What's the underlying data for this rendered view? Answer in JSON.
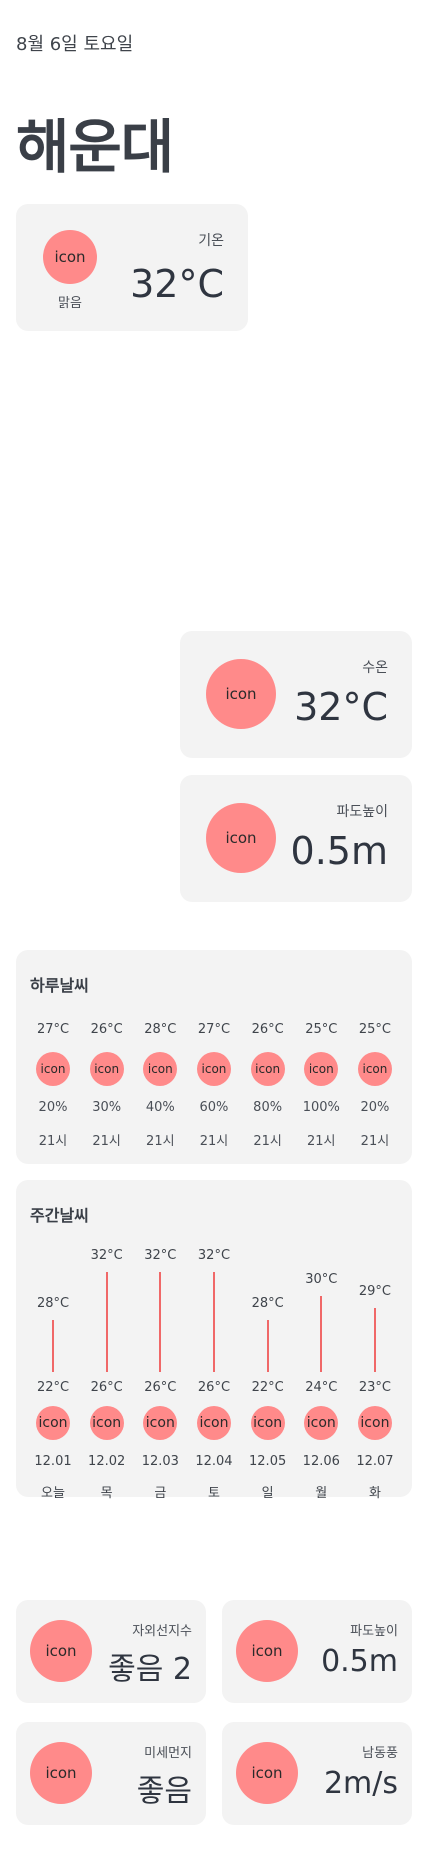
{
  "header": {
    "date": "8월 6일 토요일",
    "location": "해운대"
  },
  "now": {
    "icon_text": "icon",
    "condition": "맑음",
    "label": "기온",
    "value": "32°C"
  },
  "water": {
    "icon_text": "icon",
    "label": "수온",
    "value": "32°C"
  },
  "wave": {
    "icon_text": "icon",
    "label": "파도높이",
    "value": "0.5m"
  },
  "hourly": {
    "title": "하루날씨",
    "items": [
      {
        "temp": "27°C",
        "icon": "icon",
        "precip": "20%",
        "time": "21시"
      },
      {
        "temp": "26°C",
        "icon": "icon",
        "precip": "30%",
        "time": "21시"
      },
      {
        "temp": "28°C",
        "icon": "icon",
        "precip": "40%",
        "time": "21시"
      },
      {
        "temp": "27°C",
        "icon": "icon",
        "precip": "60%",
        "time": "21시"
      },
      {
        "temp": "26°C",
        "icon": "icon",
        "precip": "80%",
        "time": "21시"
      },
      {
        "temp": "25°C",
        "icon": "icon",
        "precip": "100%",
        "time": "21시"
      },
      {
        "temp": "25°C",
        "icon": "icon",
        "precip": "20%",
        "time": "21시"
      }
    ]
  },
  "weekly": {
    "title": "주간날씨",
    "items": [
      {
        "high": "28°C",
        "high_value": 28,
        "low": "22°C",
        "low_value": 22,
        "icon": "icon",
        "date": "12.01",
        "day": "오늘"
      },
      {
        "high": "32°C",
        "high_value": 32,
        "low": "26°C",
        "low_value": 26,
        "icon": "icon",
        "date": "12.02",
        "day": "목"
      },
      {
        "high": "32°C",
        "high_value": 32,
        "low": "26°C",
        "low_value": 26,
        "icon": "icon",
        "date": "12.03",
        "day": "금"
      },
      {
        "high": "32°C",
        "high_value": 32,
        "low": "26°C",
        "low_value": 26,
        "icon": "icon",
        "date": "12.04",
        "day": "토"
      },
      {
        "high": "28°C",
        "high_value": 28,
        "low": "22°C",
        "low_value": 22,
        "icon": "icon",
        "date": "12.05",
        "day": "일"
      },
      {
        "high": "30°C",
        "high_value": 30,
        "low": "24°C",
        "low_value": 24,
        "icon": "icon",
        "date": "12.06",
        "day": "월"
      },
      {
        "high": "29°C",
        "high_value": 29,
        "low": "23°C",
        "low_value": 23,
        "icon": "icon",
        "date": "12.07",
        "day": "화"
      }
    ]
  },
  "details": {
    "uv": {
      "icon_text": "icon",
      "label": "자외선지수",
      "value": "좋음 2"
    },
    "wave": {
      "icon_text": "icon",
      "label": "파도높이",
      "value": "0.5m"
    },
    "dust": {
      "icon_text": "icon",
      "label": "미세먼지",
      "value": "좋음"
    },
    "wind": {
      "icon_text": "icon",
      "label": "남동풍",
      "value": "2m/s"
    }
  },
  "colors": {
    "card_bg": "#f3f3f3",
    "icon_bg": "#ff8a8a",
    "bar": "#f06868",
    "text": "#3a3f47"
  }
}
